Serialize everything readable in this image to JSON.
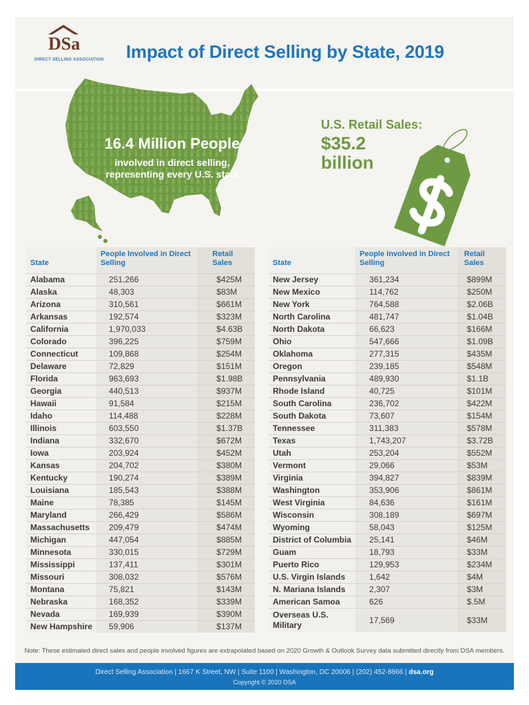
{
  "header": {
    "org_logo_text": "DSA",
    "org_name": "DIRECT SELLING ASSOCIATION",
    "title": "Impact of Direct Selling by State, 2019"
  },
  "hero": {
    "people_headline": "16.4 Million People",
    "people_line1": "involved in direct selling,",
    "people_line2": "representing every U.S. state",
    "sales_label": "U.S. Retail Sales:",
    "sales_value": "$35.2 billion",
    "tag_icon": "dollar-sign-icon",
    "accent_green": "#6e9a43",
    "accent_blue": "#1f75bd"
  },
  "table": {
    "columns": [
      "State",
      "People Involved in Direct Selling",
      "Retail Sales"
    ],
    "left": [
      [
        "Alabama",
        "251,266",
        "$425M"
      ],
      [
        "Alaska",
        "48,303",
        "$83M"
      ],
      [
        "Arizona",
        "310,561",
        "$661M"
      ],
      [
        "Arkansas",
        "192,574",
        "$323M"
      ],
      [
        "California",
        "1,970,033",
        "$4.63B"
      ],
      [
        "Colorado",
        "396,225",
        "$759M"
      ],
      [
        "Connecticut",
        "109,868",
        "$254M"
      ],
      [
        "Delaware",
        "72,829",
        "$151M"
      ],
      [
        "Florida",
        "963,693",
        "$1.98B"
      ],
      [
        "Georgia",
        "440,513",
        "$937M"
      ],
      [
        "Hawaii",
        "91,584",
        "$215M"
      ],
      [
        "Idaho",
        "114,488",
        "$228M"
      ],
      [
        "Illinois",
        "603,550",
        "$1.37B"
      ],
      [
        "Indiana",
        "332,670",
        "$672M"
      ],
      [
        "Iowa",
        "203,924",
        "$452M"
      ],
      [
        "Kansas",
        "204,702",
        "$380M"
      ],
      [
        "Kentucky",
        "190,274",
        "$389M"
      ],
      [
        "Louisiana",
        "185,543",
        "$388M"
      ],
      [
        "Maine",
        "78,385",
        "$145M"
      ],
      [
        "Maryland",
        "266,429",
        "$586M"
      ],
      [
        "Massachusetts",
        "209,479",
        "$474M"
      ],
      [
        "Michigan",
        "447,054",
        "$885M"
      ],
      [
        "Minnesota",
        "330,015",
        "$729M"
      ],
      [
        "Mississippi",
        "137,411",
        "$301M"
      ],
      [
        "Missouri",
        "308,032",
        "$576M"
      ],
      [
        "Montana",
        "75,821",
        "$143M"
      ],
      [
        "Nebraska",
        "168,352",
        "$339M"
      ],
      [
        "Nevada",
        "169,939",
        "$390M"
      ],
      [
        "New Hampshire",
        "59,906",
        "$137M"
      ]
    ],
    "right": [
      [
        "New Jersey",
        "361,234",
        "$899M"
      ],
      [
        "New Mexico",
        "114,762",
        "$250M"
      ],
      [
        "New York",
        "764,588",
        "$2.06B"
      ],
      [
        "North Carolina",
        "481,747",
        "$1.04B"
      ],
      [
        "North Dakota",
        "66,623",
        "$166M"
      ],
      [
        "Ohio",
        "547,666",
        "$1.09B"
      ],
      [
        "Oklahoma",
        "277,315",
        "$435M"
      ],
      [
        "Oregon",
        "239,185",
        "$548M"
      ],
      [
        "Pennsylvania",
        "489,930",
        "$1.1B"
      ],
      [
        "Rhode Island",
        "40,725",
        "$101M"
      ],
      [
        "South Carolina",
        "236,702",
        "$422M"
      ],
      [
        "South Dakota",
        "73,607",
        "$154M"
      ],
      [
        "Tennessee",
        "311,383",
        "$578M"
      ],
      [
        "Texas",
        "1,743,207",
        "$3.72B"
      ],
      [
        "Utah",
        "253,204",
        "$552M"
      ],
      [
        "Vermont",
        "29,066",
        "$53M"
      ],
      [
        "Virginia",
        "394,827",
        "$839M"
      ],
      [
        "Washington",
        "353,906",
        "$861M"
      ],
      [
        "West Virginia",
        "84,636",
        "$161M"
      ],
      [
        "Wisconsin",
        "308,189",
        "$697M"
      ],
      [
        "Wyoming",
        "58,043",
        "$125M"
      ],
      [
        "District of Columbia",
        "25,141",
        "$46M"
      ],
      [
        "Guam",
        "18,793",
        "$33M"
      ],
      [
        "Puerto Rico",
        "129,953",
        "$234M"
      ],
      [
        "U.S. Virgin Islands",
        "1,642",
        "$4M"
      ],
      [
        "N. Mariana Islands",
        "2,307",
        "$3M"
      ],
      [
        "American Samoa",
        "626",
        "$.5M"
      ],
      [
        "Overseas U.S. Military",
        "17,569",
        "$33M"
      ]
    ]
  },
  "note": "Note: These estimated direct sales and people involved figures are extrapolated based on 2020 Growth & Outlook Survey data submitted directly from DSA members.",
  "footer": {
    "address": "Direct Selling Association | 1667 K Street, NW | Suite 1100 | Washington, DC 20006 | (202) 452-8866 | ",
    "site": "dsa.org",
    "copyright": "Copyright © 2020 DSA"
  }
}
